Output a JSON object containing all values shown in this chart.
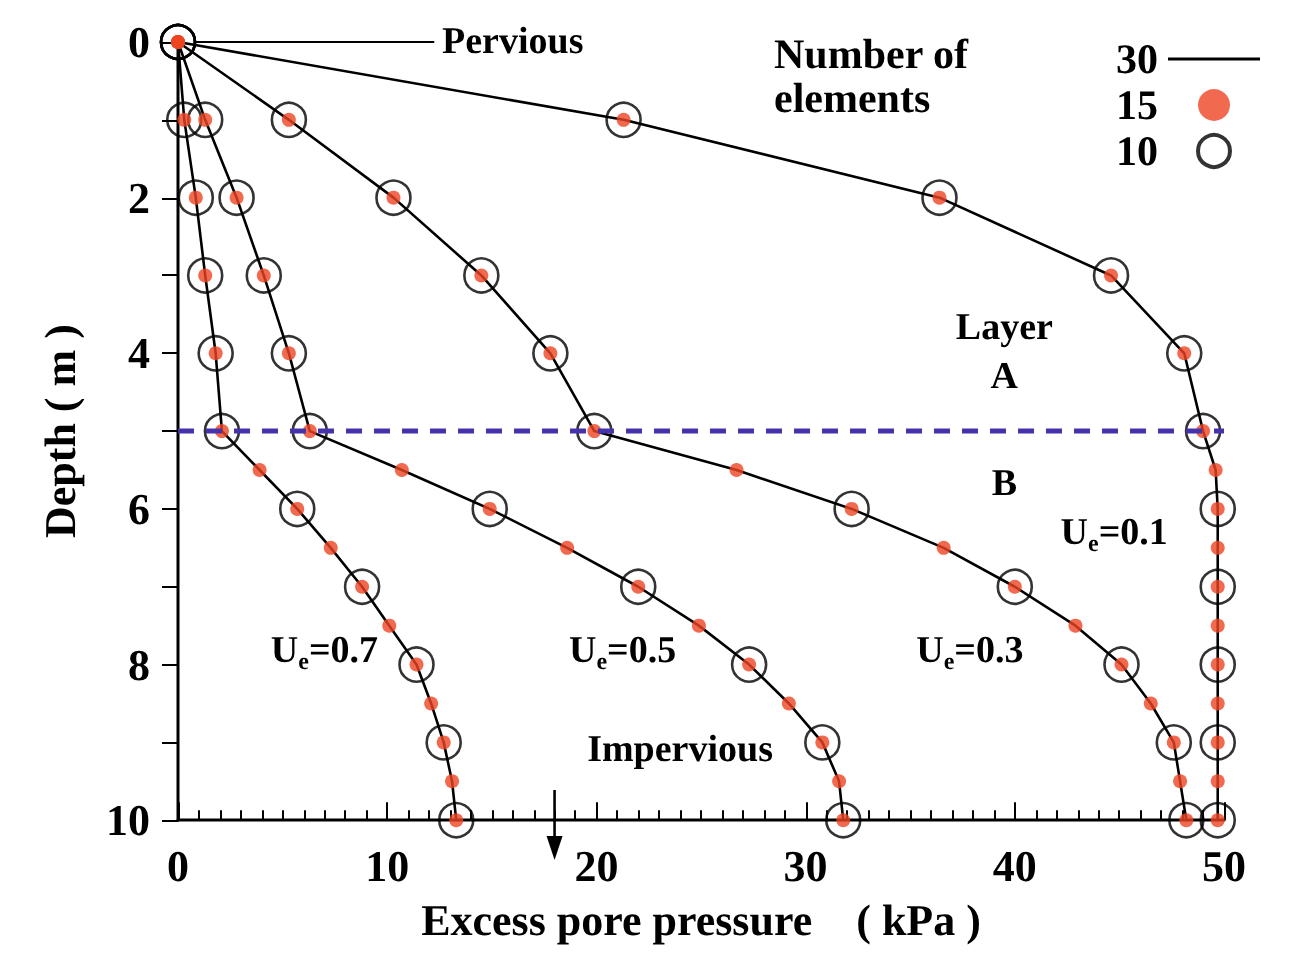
{
  "chart_data": {
    "type": "line",
    "xlabel": "Excess pore pressure　( kPa )",
    "ylabel": "Depth ( m )",
    "legend_title": "Number of elements",
    "legend": "top right",
    "grid": false,
    "xlim": [
      0,
      50
    ],
    "xticks": [
      0,
      10,
      20,
      30,
      40,
      50
    ],
    "ylim": [
      10,
      0
    ],
    "yticks": [
      0,
      2,
      4,
      6,
      8,
      10
    ],
    "series": [
      {
        "name": "30",
        "color": "#000000",
        "marker": "none",
        "x": [
          0,
          0.3,
          0.85,
          1.3,
          1.8,
          2.1,
          3.9,
          5.7,
          7.3,
          8.8,
          10.1,
          11.4,
          12.1,
          12.7,
          13.1,
          13.3
        ],
        "values": [
          0,
          1,
          2,
          3,
          4,
          5,
          5.5,
          6,
          6.5,
          7,
          7.5,
          8,
          8.5,
          9,
          9.5,
          10
        ]
      },
      {
        "color": "#000000",
        "marker": "none",
        "x": [
          0,
          1.3,
          2.8,
          4.1,
          5.3,
          6.3,
          10.7,
          14.9,
          18.6,
          22,
          24.9,
          27.3,
          29.2,
          30.8,
          31.6,
          31.8
        ],
        "values": [
          0,
          1,
          2,
          3,
          4,
          5,
          5.5,
          6,
          6.5,
          7,
          7.5,
          8,
          8.5,
          9,
          9.5,
          10
        ]
      },
      {
        "color": "#000000",
        "marker": "none",
        "x": [
          0,
          5.3,
          10.3,
          14.5,
          17.8,
          19.9,
          26.7,
          32.2,
          36.6,
          40,
          42.9,
          45.1,
          46.5,
          47.6,
          47.9,
          48.2
        ],
        "values": [
          0,
          1,
          2,
          3,
          4,
          5,
          5.5,
          6,
          6.5,
          7,
          7.5,
          8,
          8.5,
          9,
          9.5,
          10
        ]
      },
      {
        "color": "#000000",
        "marker": "none",
        "x": [
          0,
          21.3,
          36.4,
          44.6,
          48.1,
          49,
          49.6,
          49.7,
          49.7,
          49.7,
          49.7,
          49.7,
          49.7,
          49.7,
          49.7,
          49.7
        ],
        "values": [
          0,
          1,
          2,
          3,
          4,
          5,
          5.5,
          6,
          6.5,
          7,
          7.5,
          8,
          8.5,
          9,
          9.5,
          10
        ]
      },
      {
        "name": "15",
        "type": "scatter",
        "color": "#ee4422",
        "marker": "circle",
        "x": [
          0,
          0.3,
          0.85,
          1.3,
          1.8,
          2.1,
          3.9,
          5.7,
          7.3,
          8.8,
          10.1,
          11.4,
          12.1,
          12.7,
          13.1,
          13.3
        ],
        "values": [
          0,
          1,
          2,
          3,
          4,
          5,
          5.5,
          6,
          6.5,
          7,
          7.5,
          8,
          8.5,
          9,
          9.5,
          10
        ]
      },
      {
        "type": "scatter",
        "color": "#ee4422",
        "marker": "circle",
        "x": [
          0,
          1.3,
          2.8,
          4.1,
          5.3,
          6.3,
          10.7,
          14.9,
          18.6,
          22,
          24.9,
          27.3,
          29.2,
          30.8,
          31.6,
          31.8
        ],
        "values": [
          0,
          1,
          2,
          3,
          4,
          5,
          5.5,
          6,
          6.5,
          7,
          7.5,
          8,
          8.5,
          9,
          9.5,
          10
        ]
      },
      {
        "type": "scatter",
        "color": "#ee4422",
        "marker": "circle",
        "x": [
          0,
          5.3,
          10.3,
          14.5,
          17.8,
          19.9,
          26.7,
          32.2,
          36.6,
          40,
          42.9,
          45.1,
          46.5,
          47.6,
          47.9,
          48.2
        ],
        "values": [
          0,
          1,
          2,
          3,
          4,
          5,
          5.5,
          6,
          6.5,
          7,
          7.5,
          8,
          8.5,
          9,
          9.5,
          10
        ]
      },
      {
        "type": "scatter",
        "color": "#ee4422",
        "marker": "circle",
        "x": [
          0,
          21.3,
          36.4,
          44.6,
          48.1,
          49,
          49.6,
          49.7,
          49.7,
          49.7,
          49.7,
          49.7,
          49.7,
          49.7,
          49.7,
          49.7
        ],
        "values": [
          0,
          1,
          2,
          3,
          4,
          5,
          5.5,
          6,
          6.5,
          7,
          7.5,
          8,
          8.5,
          9,
          9.5,
          10
        ]
      },
      {
        "name": "10",
        "type": "scatter",
        "color": "#000000",
        "marker": "circle",
        "x": [
          0,
          0.3,
          0.85,
          1.3,
          1.8,
          2.1,
          5.7,
          8.8,
          11.4,
          12.7,
          13.3
        ],
        "values": [
          0,
          1,
          2,
          3,
          4,
          5,
          6,
          7,
          8,
          9,
          10
        ]
      },
      {
        "type": "scatter",
        "color": "#000000",
        "marker": "circle",
        "x": [
          0,
          1.3,
          2.8,
          4.1,
          5.3,
          6.3,
          14.9,
          22,
          27.3,
          30.8,
          31.8
        ],
        "values": [
          0,
          1,
          2,
          3,
          4,
          5,
          6,
          7,
          8,
          9,
          10
        ]
      },
      {
        "type": "scatter",
        "color": "#000000",
        "marker": "circle",
        "x": [
          0,
          5.3,
          10.3,
          14.5,
          17.8,
          19.9,
          32.2,
          40,
          45.1,
          47.6,
          48.2
        ],
        "values": [
          0,
          1,
          2,
          3,
          4,
          5,
          6,
          7,
          8,
          9,
          10
        ]
      },
      {
        "type": "scatter",
        "color": "#000000",
        "marker": "circle",
        "x": [
          0,
          21.3,
          36.4,
          44.6,
          48.1,
          49,
          49.7,
          49.7,
          49.7,
          49.7,
          49.7
        ],
        "values": [
          0,
          1,
          2,
          3,
          4,
          5,
          6,
          7,
          8,
          9,
          10
        ]
      }
    ],
    "ref_lines": [
      {
        "axis": "y",
        "value": 5,
        "color": "#4433aa",
        "line_style": "dashed"
      }
    ],
    "annotations": [
      "Pervious",
      "Impervious",
      "Layer",
      "A",
      "B",
      "U$_{e}$=0.1",
      "U$_{e}$=0.3",
      "U$_{e}$=0.5",
      "U$_{e}$=0.7"
    ]
  }
}
